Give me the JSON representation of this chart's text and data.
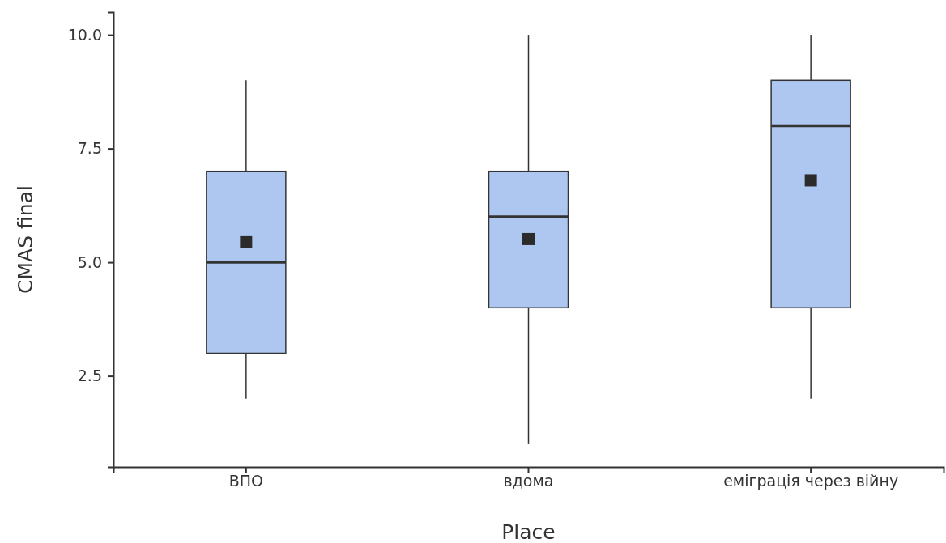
{
  "chart_data": {
    "type": "box",
    "xlabel": "Place",
    "ylabel": "CMAS final",
    "categories": [
      "ВПО",
      "вдома",
      "еміграція через війну"
    ],
    "color": "#aec7f0",
    "marker": "square",
    "ylim": [
      0.5,
      10.5
    ],
    "yticks": [
      {
        "value": 2.5,
        "label": "2.5"
      },
      {
        "value": 5,
        "label": "5.0"
      },
      {
        "value": 7.5,
        "label": "7.5"
      },
      {
        "value": 10,
        "label": "10.0"
      }
    ],
    "boxes": [
      {
        "low": 2,
        "q1": 3,
        "median": 5,
        "q3": 7,
        "high": 9,
        "mean": 5.44
      },
      {
        "low": 1,
        "q1": 4,
        "median": 6,
        "q3": 7,
        "high": 10,
        "mean": 5.51
      },
      {
        "low": 2,
        "q1": 4,
        "median": 8,
        "q3": 9,
        "high": 10,
        "mean": 6.8
      }
    ]
  }
}
